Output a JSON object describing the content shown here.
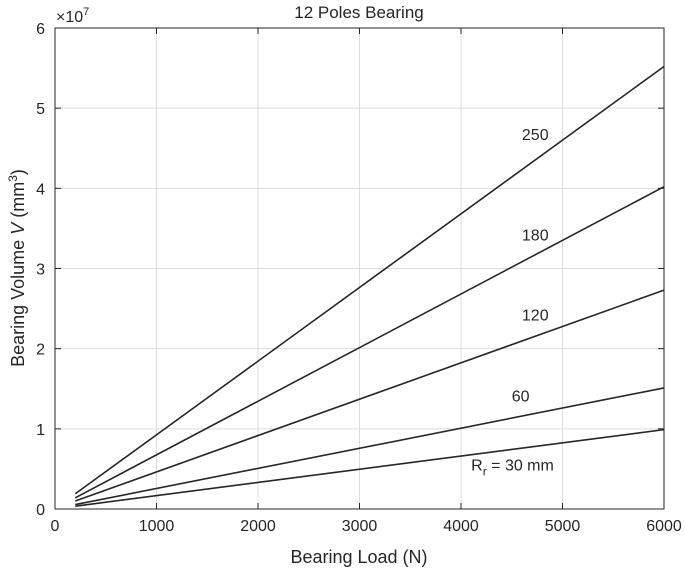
{
  "chart_data": {
    "type": "line",
    "title": "12 Poles Bearing",
    "xlabel": "Bearing Load (N)",
    "ylabel": {
      "main": "Bearing Volume ",
      "var": "V",
      "unit_open": " (mm",
      "unit_sup": "3",
      "unit_close": ")"
    },
    "y_multiplier": {
      "base": "×10",
      "exp": "7"
    },
    "xlim": [
      0,
      6000
    ],
    "ylim": [
      0,
      60000000
    ],
    "x_ticks": [
      0,
      1000,
      2000,
      3000,
      4000,
      5000,
      6000
    ],
    "y_ticks": [
      0,
      10000000,
      20000000,
      30000000,
      40000000,
      50000000,
      60000000
    ],
    "x_tick_labels": [
      "0",
      "1000",
      "2000",
      "3000",
      "4000",
      "5000",
      "6000"
    ],
    "y_tick_labels": [
      "0",
      "1",
      "2",
      "3",
      "4",
      "5",
      "6"
    ],
    "grid": true,
    "legend": "none",
    "series": [
      {
        "label": "250",
        "x": [
          200,
          6000
        ],
        "y": [
          1900000,
          55200000
        ],
        "label_at": [
          4600,
          46000000
        ]
      },
      {
        "label": "180",
        "x": [
          200,
          6000
        ],
        "y": [
          1400000,
          40200000
        ],
        "label_at": [
          4600,
          33500000
        ]
      },
      {
        "label": "120",
        "x": [
          200,
          6000
        ],
        "y": [
          1000000,
          27300000
        ],
        "label_at": [
          4600,
          23500000
        ]
      },
      {
        "label": "60",
        "x": [
          200,
          6000
        ],
        "y": [
          550000,
          15100000
        ],
        "label_at": [
          4500,
          13400000
        ]
      },
      {
        "label": "R",
        "label_sub": "r",
        "label_rest": " = 30 mm",
        "x": [
          200,
          6000
        ],
        "y": [
          350000,
          9900000
        ],
        "label_at": [
          4100,
          4800000
        ]
      }
    ]
  }
}
